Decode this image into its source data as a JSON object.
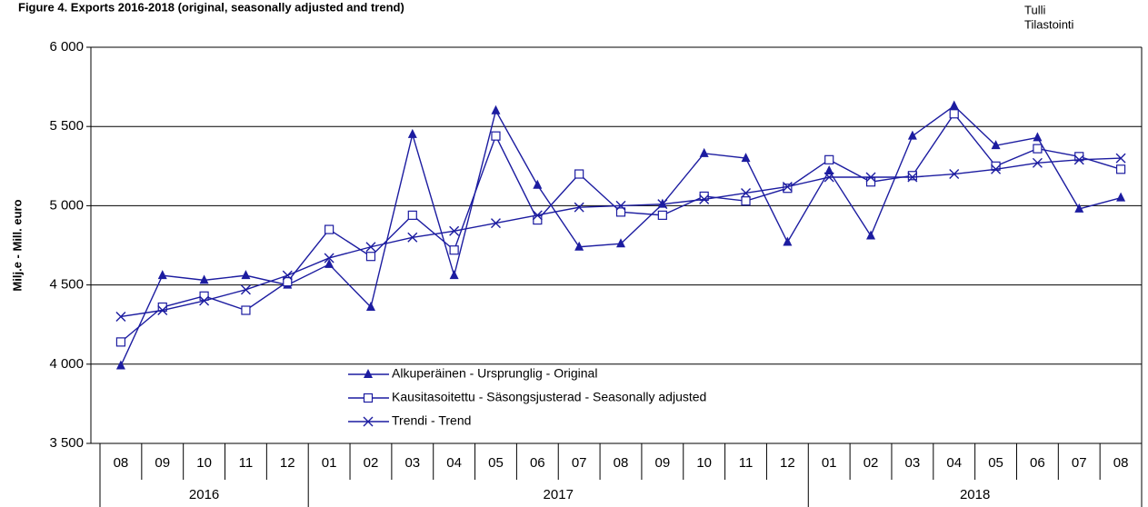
{
  "chart_data": {
    "type": "line",
    "title": "Figure 4. Exports 2016-2018 (original, seasonally adjusted and trend)",
    "source": [
      "Tulli",
      "Tilastointi"
    ],
    "y_label": "Milj.e - Mill. euro",
    "categories": [
      "08",
      "09",
      "10",
      "11",
      "12",
      "01",
      "02",
      "03",
      "04",
      "05",
      "06",
      "07",
      "08",
      "09",
      "10",
      "11",
      "12",
      "01",
      "02",
      "03",
      "04",
      "05",
      "06",
      "07",
      "08"
    ],
    "year_labels": [
      "2016",
      "2017",
      "2018"
    ],
    "ylim": [
      3500,
      6000
    ],
    "yticks": [
      {
        "value": 3500,
        "label": "3 500"
      },
      {
        "value": 4000,
        "label": "4 000"
      },
      {
        "value": 4500,
        "label": "4 500"
      },
      {
        "value": 5000,
        "label": "5 000"
      },
      {
        "value": 5500,
        "label": "5 500"
      },
      {
        "value": 6000,
        "label": "6 000"
      }
    ],
    "grid": true,
    "series": [
      {
        "name": "Alkuperäinen - Ursprunglig - Original",
        "color": "#1c1ca0",
        "marker": "triangle",
        "values": [
          3990,
          4560,
          4530,
          4560,
          4500,
          4630,
          4360,
          5450,
          4560,
          5600,
          5130,
          4740,
          4760,
          5010,
          5330,
          5300,
          4770,
          5220,
          4810,
          5440,
          5630,
          5380,
          5430,
          4980,
          5050
        ]
      },
      {
        "name": "Kausitasoitettu - Säsongsjusterad - Seasonally adjusted",
        "color": "#1c1ca0",
        "marker": "square",
        "values": [
          4140,
          4360,
          4430,
          4340,
          4520,
          4850,
          4680,
          4940,
          4720,
          5440,
          4910,
          5200,
          4960,
          4940,
          5060,
          5030,
          5110,
          5290,
          5150,
          5190,
          5580,
          5250,
          5360,
          5310,
          5230
        ]
      },
      {
        "name": "Trendi - Trend",
        "color": "#1c1ca0",
        "marker": "x",
        "values": [
          4300,
          4340,
          4400,
          4470,
          4560,
          4670,
          4740,
          4800,
          4840,
          4890,
          4940,
          4990,
          5000,
          5010,
          5040,
          5080,
          5120,
          5180,
          5180,
          5180,
          5200,
          5230,
          5270,
          5290,
          5300
        ]
      }
    ]
  }
}
